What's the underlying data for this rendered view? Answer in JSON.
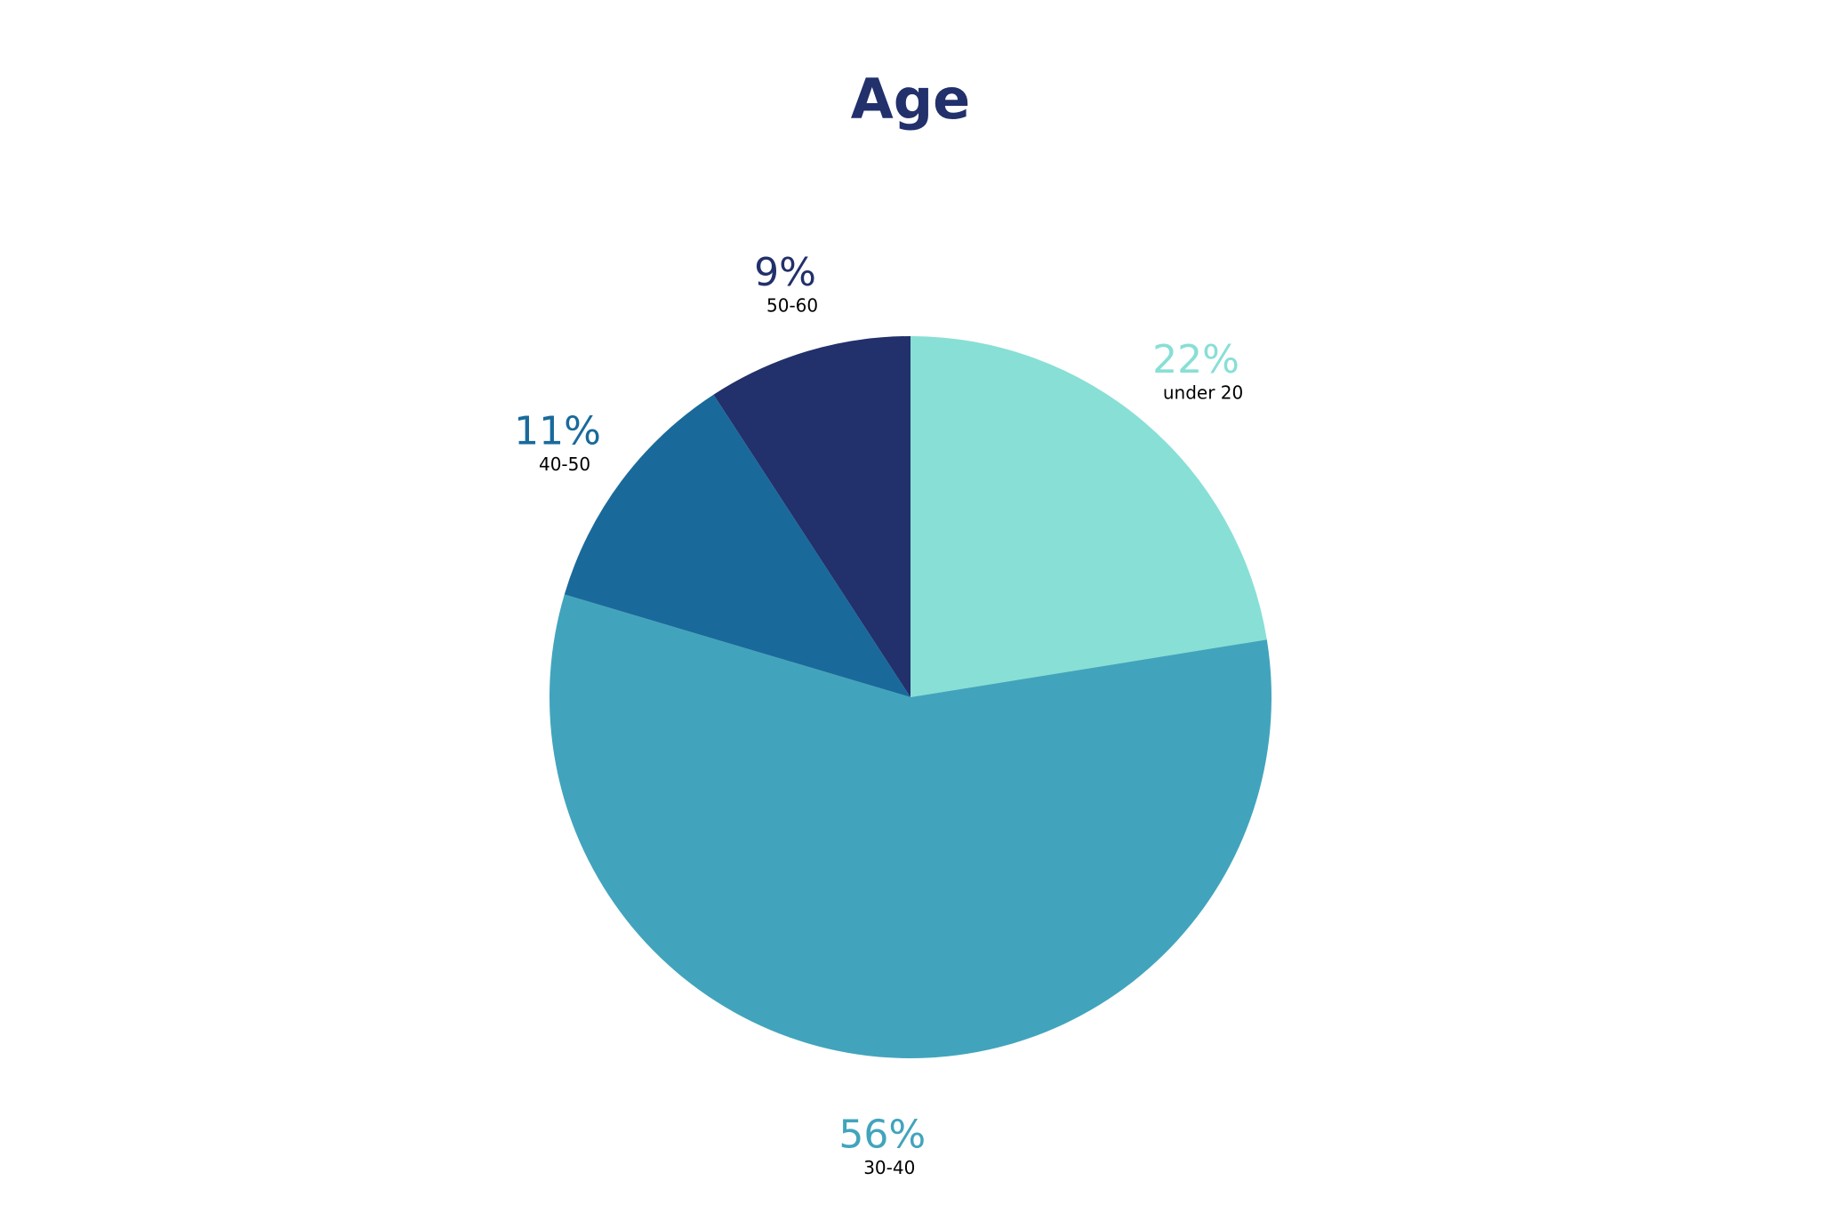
{
  "chart_data": {
    "type": "pie",
    "title": "Age",
    "categories": [
      "under 20",
      "30-40",
      "40-50",
      "50-60"
    ],
    "values": [
      22,
      56,
      11,
      9
    ],
    "value_labels": [
      "22%",
      "56%",
      "11%",
      "9%"
    ],
    "colors": [
      "#88dfd5",
      "#41a4bc",
      "#196a9b",
      "#22306b"
    ]
  }
}
